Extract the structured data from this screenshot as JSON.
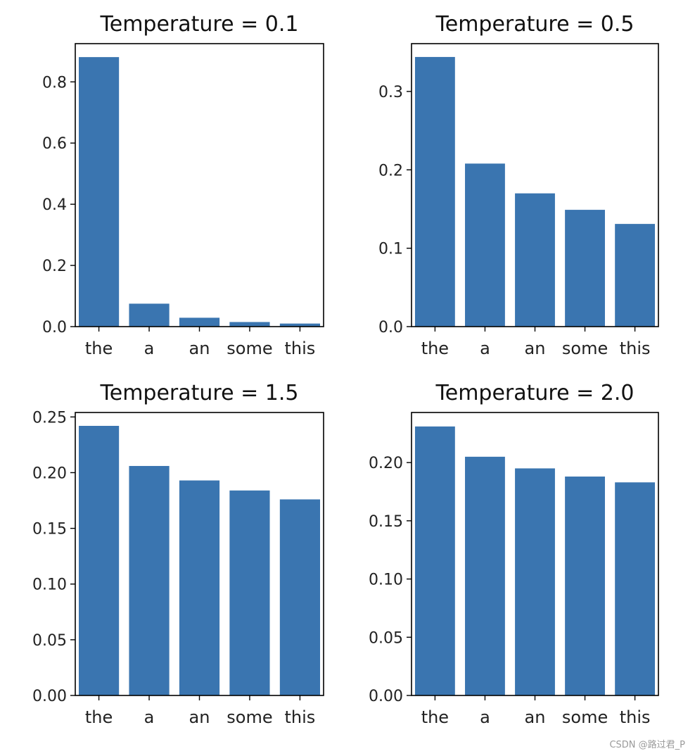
{
  "figure": {
    "bar_color": "#3a75b0",
    "watermark": "CSDN @路过君_P"
  },
  "chart_data": [
    {
      "type": "bar",
      "title": "Temperature = 0.1",
      "categories": [
        "the",
        "a",
        "an",
        "some",
        "this"
      ],
      "values": [
        0.881,
        0.075,
        0.029,
        0.015,
        0.01
      ],
      "ylim": [
        0,
        0.925
      ],
      "yticks": [
        0.0,
        0.2,
        0.4,
        0.6,
        0.8
      ],
      "ytick_labels": [
        "0.0",
        "0.2",
        "0.4",
        "0.6",
        "0.8"
      ],
      "xlabel": "",
      "ylabel": "",
      "grid": false
    },
    {
      "type": "bar",
      "title": "Temperature = 0.5",
      "categories": [
        "the",
        "a",
        "an",
        "some",
        "this"
      ],
      "values": [
        0.344,
        0.208,
        0.17,
        0.149,
        0.131
      ],
      "ylim": [
        0,
        0.361
      ],
      "yticks": [
        0.0,
        0.1,
        0.2,
        0.3
      ],
      "ytick_labels": [
        "0.0",
        "0.1",
        "0.2",
        "0.3"
      ],
      "xlabel": "",
      "ylabel": "",
      "grid": false
    },
    {
      "type": "bar",
      "title": "Temperature = 1.5",
      "categories": [
        "the",
        "a",
        "an",
        "some",
        "this"
      ],
      "values": [
        0.242,
        0.206,
        0.193,
        0.184,
        0.176
      ],
      "ylim": [
        0,
        0.254
      ],
      "yticks": [
        0.0,
        0.05,
        0.1,
        0.15,
        0.2,
        0.25
      ],
      "ytick_labels": [
        "0.00",
        "0.05",
        "0.10",
        "0.15",
        "0.20",
        "0.25"
      ],
      "xlabel": "",
      "ylabel": "",
      "grid": false
    },
    {
      "type": "bar",
      "title": "Temperature = 2.0",
      "categories": [
        "the",
        "a",
        "an",
        "some",
        "this"
      ],
      "values": [
        0.231,
        0.205,
        0.195,
        0.188,
        0.183
      ],
      "ylim": [
        0,
        0.243
      ],
      "yticks": [
        0.0,
        0.05,
        0.1,
        0.15,
        0.2
      ],
      "ytick_labels": [
        "0.00",
        "0.05",
        "0.10",
        "0.15",
        "0.20"
      ],
      "xlabel": "",
      "ylabel": "",
      "grid": false
    }
  ]
}
